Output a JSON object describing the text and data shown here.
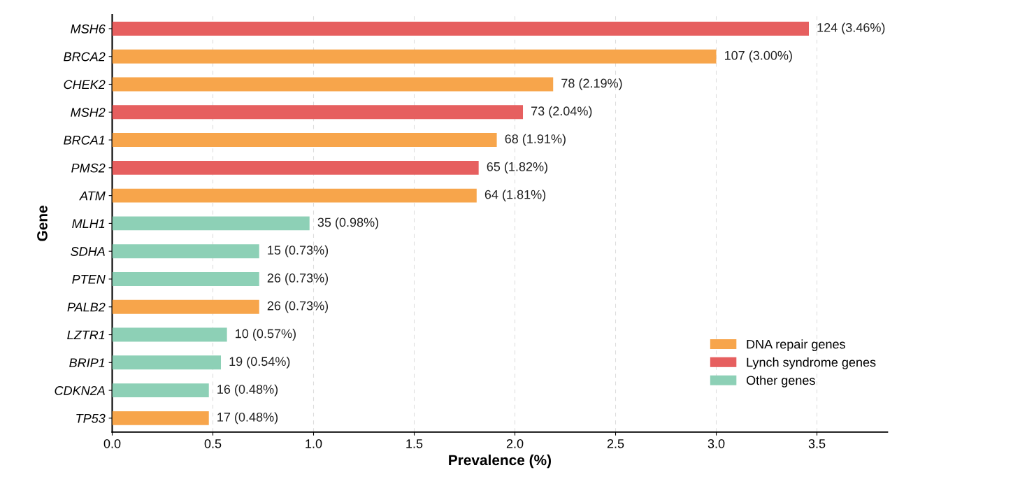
{
  "chart_data": {
    "type": "bar",
    "orientation": "horizontal",
    "xlabel": "Prevalence (%)",
    "ylabel": "Gene",
    "categories": [
      "MSH6",
      "BRCA2",
      "CHEK2",
      "MSH2",
      "BRCA1",
      "PMS2",
      "ATM",
      "MLH1",
      "SDHA",
      "PTEN",
      "PALB2",
      "LZTR1",
      "BRIP1",
      "CDKN2A",
      "TP53"
    ],
    "series": [
      {
        "name": "DNA repair genes",
        "color": "#f7a54b",
        "values": [
          null,
          3.0,
          2.19,
          null,
          1.91,
          null,
          1.81,
          null,
          null,
          null,
          0.73,
          null,
          null,
          null,
          0.48
        ],
        "value_labels": [
          null,
          "107 (3.00%)",
          "78 (2.19%)",
          null,
          "68 (1.91%)",
          null,
          "64 (1.81%)",
          null,
          null,
          null,
          "26 (0.73%)",
          null,
          null,
          null,
          "17 (0.48%)"
        ]
      },
      {
        "name": "Lynch syndrome genes",
        "color": "#e65f5f",
        "values": [
          3.46,
          null,
          null,
          2.04,
          null,
          1.82,
          null,
          null,
          null,
          null,
          null,
          null,
          null,
          null,
          null
        ],
        "value_labels": [
          "124 (3.46%)",
          null,
          null,
          "73 (2.04%)",
          null,
          "65 (1.82%)",
          null,
          null,
          null,
          null,
          null,
          null,
          null,
          null,
          null
        ]
      },
      {
        "name": "Other genes",
        "color": "#8dd0b6",
        "values": [
          null,
          null,
          null,
          null,
          null,
          null,
          null,
          0.98,
          0.73,
          0.73,
          null,
          0.57,
          0.54,
          0.48,
          null
        ],
        "value_labels": [
          null,
          null,
          null,
          null,
          null,
          null,
          null,
          "35 (0.98%)",
          "15 (0.73%)",
          "26 (0.73%)",
          null,
          "10 (0.57%)",
          "19 (0.54%)",
          "16 (0.48%)",
          null
        ]
      }
    ],
    "xlim": [
      0,
      3.85
    ],
    "xticks": [
      {
        "value": 0,
        "label": "0.0"
      },
      {
        "value": 0.5,
        "label": "0.5"
      },
      {
        "value": 1,
        "label": "1.0"
      },
      {
        "value": 1.5,
        "label": "1.5"
      },
      {
        "value": 2,
        "label": "2.0"
      },
      {
        "value": 2.5,
        "label": "2.5"
      },
      {
        "value": 3,
        "label": "3.0"
      },
      {
        "value": 3.5,
        "label": "3.5"
      }
    ],
    "grid": "x",
    "legend": "bottom right"
  }
}
